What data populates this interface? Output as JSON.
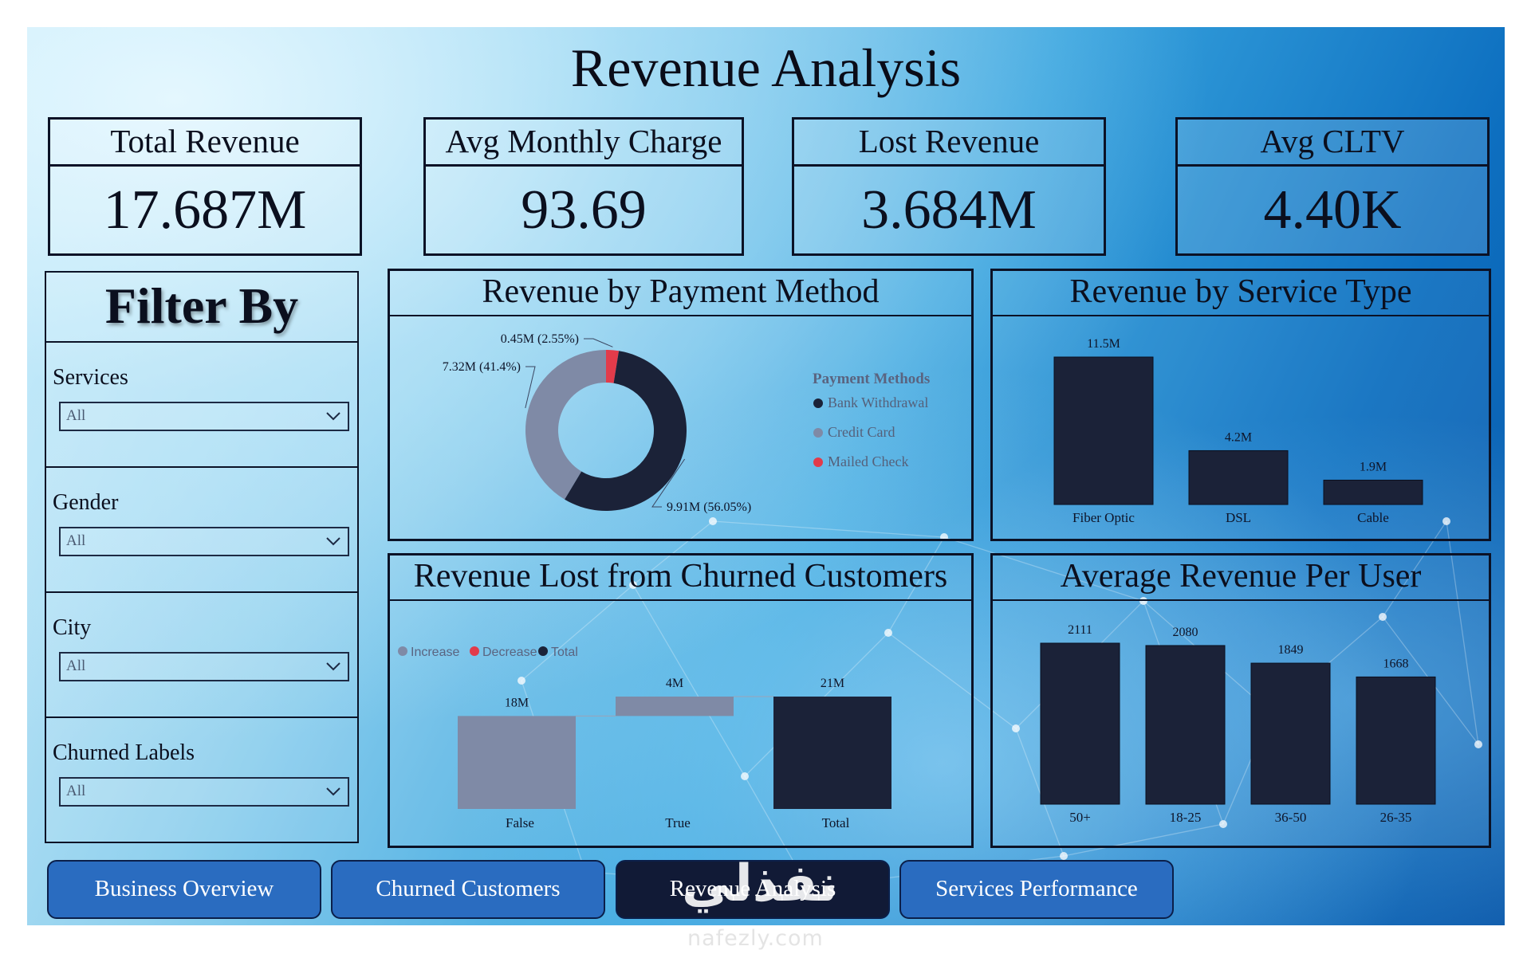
{
  "title": "Revenue Analysis",
  "kpis": [
    {
      "label": "Total Revenue",
      "value": "17.687M"
    },
    {
      "label": "Avg Monthly Charge",
      "value": "93.69"
    },
    {
      "label": "Lost Revenue",
      "value": "3.684M"
    },
    {
      "label": "Avg CLTV",
      "value": "4.40K"
    }
  ],
  "filters": {
    "title": "Filter By",
    "items": [
      {
        "label": "Services",
        "value": "All"
      },
      {
        "label": "Gender",
        "value": "All"
      },
      {
        "label": "City",
        "value": "All"
      },
      {
        "label": "Churned Labels",
        "value": "All"
      }
    ]
  },
  "panels": {
    "payment": "Revenue by Payment Method",
    "service": "Revenue by Service Type",
    "churn": "Revenue Lost from Churned Customers",
    "arpu": "Average Revenue Per User"
  },
  "chart_data": [
    {
      "type": "pie",
      "subtype": "donut",
      "title": "Revenue by Payment Method",
      "legend_title": "Payment Methods",
      "legend_position": "right",
      "slices": [
        {
          "name": "Bank Withdrawal",
          "value": 9.91,
          "label": "9.91M (56.05%)",
          "color": "#1b2238"
        },
        {
          "name": "Credit Card",
          "value": 7.32,
          "label": "7.32M (41.4%)",
          "color": "#7f8aa6"
        },
        {
          "name": "Mailed Check",
          "value": 0.45,
          "label": "0.45M (2.55%)",
          "color": "#e23b4a"
        }
      ]
    },
    {
      "type": "bar",
      "title": "Revenue by Service Type",
      "categories": [
        "Fiber Optic",
        "DSL",
        "Cable"
      ],
      "values": [
        11.5,
        4.2,
        1.9
      ],
      "labels": [
        "11.5M",
        "4.2M",
        "1.9M"
      ],
      "ylim": [
        0,
        11.5
      ],
      "grid": false,
      "color": "#1b2238"
    },
    {
      "type": "bar",
      "subtype": "waterfall",
      "title": "Revenue Lost from Churned Customers",
      "legend": [
        {
          "name": "Increase",
          "color": "#7f8aa6"
        },
        {
          "name": "Decrease",
          "color": "#e23b4a"
        },
        {
          "name": "Total",
          "color": "#1b2238"
        }
      ],
      "legend_position": "top-left",
      "categories": [
        "False",
        "True",
        "Total"
      ],
      "values": [
        17.7,
        3.7,
        21.4
      ],
      "labels": [
        "18M",
        "4M",
        "21M"
      ],
      "kinds": [
        "increase",
        "increase",
        "total"
      ],
      "ylim": [
        0,
        21.4
      ],
      "grid": false
    },
    {
      "type": "bar",
      "title": "Average Revenue Per User",
      "categories": [
        "50+",
        "18-25",
        "36-50",
        "26-35"
      ],
      "values": [
        2111,
        2080,
        1849,
        1668
      ],
      "labels": [
        "2111",
        "2080",
        "1849",
        "1668"
      ],
      "ylim": [
        0,
        2111
      ],
      "grid": false,
      "color": "#1b2238"
    }
  ],
  "nav": {
    "buttons": [
      {
        "label": "Business Overview",
        "active": false
      },
      {
        "label": "Churned Customers",
        "active": false
      },
      {
        "label": "Revenue Analysis",
        "active": true
      },
      {
        "label": "Services Performance",
        "active": false
      }
    ]
  },
  "watermark": {
    "arabic": "نفذلي",
    "url": "nafezly.com"
  }
}
